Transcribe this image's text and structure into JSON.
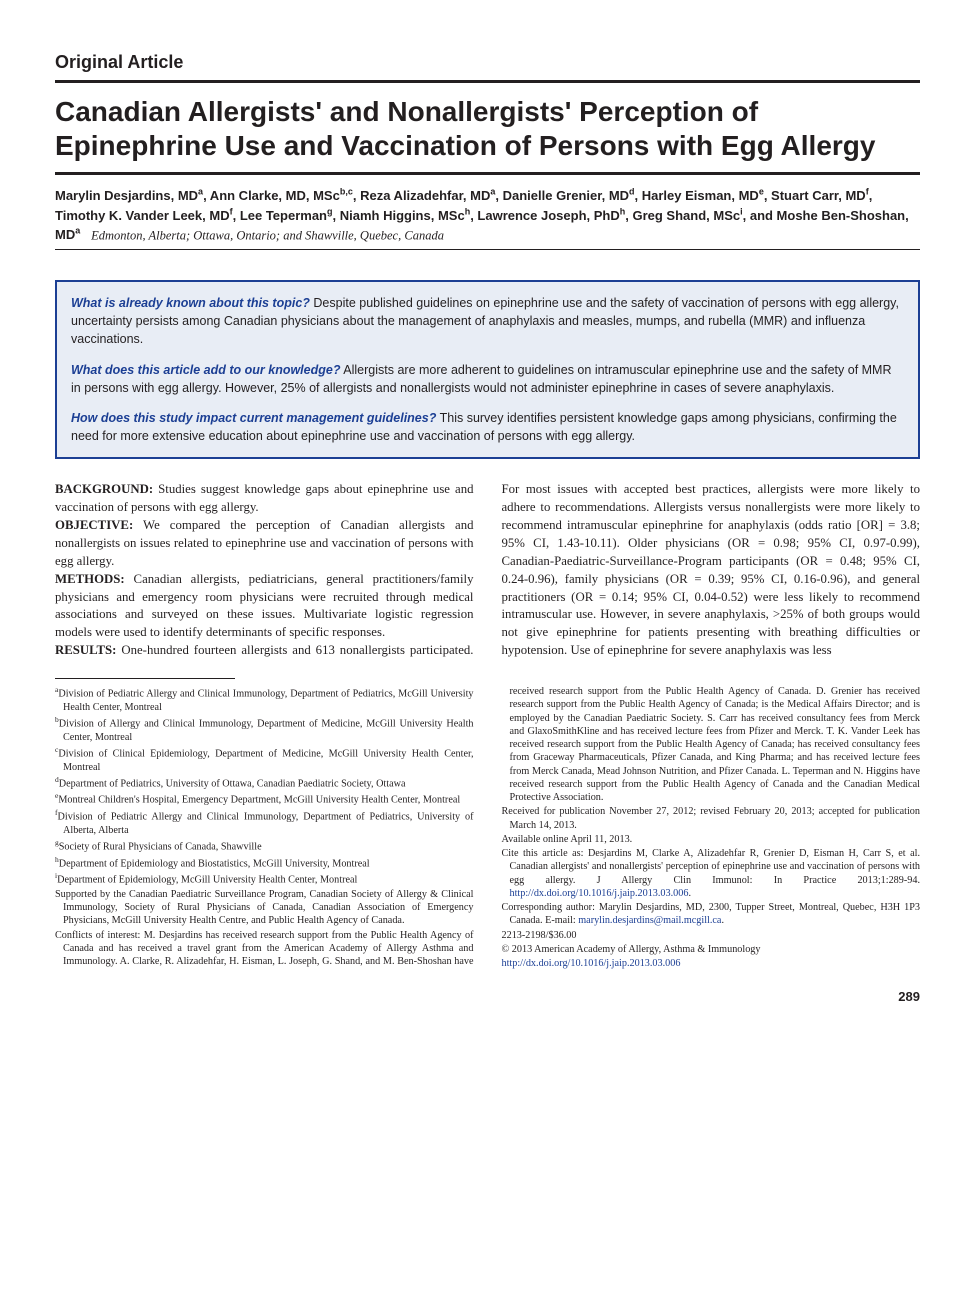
{
  "article_type": "Original Article",
  "title": "Canadian Allergists' and Nonallergists' Perception of Epinephrine Use and Vaccination of Persons with Egg Allergy",
  "authors_html": "Marylin Desjardins, MD<sup>a</sup>, Ann Clarke, MD, MSc<sup>b,c</sup>, Reza Alizadehfar, MD<sup>a</sup>, Danielle Grenier, MD<sup>d</sup>, Harley Eisman, MD<sup>e</sup>, Stuart Carr, MD<sup>f</sup>, Timothy K. Vander Leek, MD<sup>f</sup>, Lee Teperman<sup>g</sup>, Niamh Higgins, MSc<sup>h</sup>, Lawrence Joseph, PhD<sup>h</sup>, Greg Shand, MSc<sup>i</sup>, and Moshe Ben-Shoshan, MD<sup>a</sup>",
  "affil_locations": "Edmonton, Alberta; Ottawa, Ontario; and Shawville, Quebec, Canada",
  "highlights": [
    {
      "q": "What is already known about this topic?",
      "a": "Despite published guidelines on epinephrine use and the safety of vaccination of persons with egg allergy, uncertainty persists among Canadian physicians about the management of anaphylaxis and measles, mumps, and rubella (MMR) and influenza vaccinations."
    },
    {
      "q": "What does this article add to our knowledge?",
      "a": "Allergists are more adherent to guidelines on intramuscular epinephrine use and the safety of MMR in persons with egg allergy. However, 25% of allergists and nonallergists would not administer epinephrine in cases of severe anaphylaxis."
    },
    {
      "q": "How does this study impact current management guidelines?",
      "a": "This survey identifies persistent knowledge gaps among physicians, confirming the need for more extensive education about epinephrine use and vaccination of persons with egg allergy."
    }
  ],
  "abstract": {
    "background_label": "BACKGROUND:",
    "background": "Studies suggest knowledge gaps about epinephrine use and vaccination of persons with egg allergy.",
    "objective_label": "OBJECTIVE:",
    "objective": "We compared the perception of Canadian allergists and nonallergists on issues related to epinephrine use and vaccination of persons with egg allergy.",
    "methods_label": "METHODS:",
    "methods": "Canadian allergists, pediatricians, general practitioners/family physicians and emergency room physicians were recruited through medical associations and surveyed on these issues. Multivariate logistic regression models were used to identify determinants of specific responses.",
    "results_label": "RESULTS:",
    "results": "One-hundred fourteen allergists and 613 nonallergists participated. For most issues with accepted best practices, allergists were more likely to adhere to recommendations. Allergists versus nonallergists were more likely to recommend intramuscular epinephrine for anaphylaxis (odds ratio [OR] = 3.8; 95% CI, 1.43-10.11). Older physicians (OR = 0.98; 95% CI, 0.97-0.99), Canadian-Paediatric-Surveillance-Program participants (OR = 0.48; 95% CI, 0.24-0.96), family physicians (OR = 0.39; 95% CI, 0.16-0.96), and general practitioners (OR = 0.14; 95% CI, 0.04-0.52) were less likely to recommend intramuscular use. However, in severe anaphylaxis, >25% of both groups would not give epinephrine for patients presenting with breathing difficulties or hypotension. Use of epinephrine for severe anaphylaxis was less"
  },
  "footnotes": {
    "affiliations": [
      {
        "sup": "a",
        "text": "Division of Pediatric Allergy and Clinical Immunology, Department of Pediatrics, McGill University Health Center, Montreal"
      },
      {
        "sup": "b",
        "text": "Division of Allergy and Clinical Immunology, Department of Medicine, McGill University Health Center, Montreal"
      },
      {
        "sup": "c",
        "text": "Division of Clinical Epidemiology, Department of Medicine, McGill University Health Center, Montreal"
      },
      {
        "sup": "d",
        "text": "Department of Pediatrics, University of Ottawa, Canadian Paediatric Society, Ottawa"
      },
      {
        "sup": "e",
        "text": "Montreal Children's Hospital, Emergency Department, McGill University Health Center, Montreal"
      },
      {
        "sup": "f",
        "text": "Division of Pediatric Allergy and Clinical Immunology, Department of Pediatrics, University of Alberta, Alberta"
      },
      {
        "sup": "g",
        "text": "Society of Rural Physicians of Canada, Shawville"
      },
      {
        "sup": "h",
        "text": "Department of Epidemiology and Biostatistics, McGill University, Montreal"
      },
      {
        "sup": "i",
        "text": "Department of Epidemiology, McGill University Health Center, Montreal"
      }
    ],
    "support": "Supported by the Canadian Paediatric Surveillance Program, Canadian Society of Allergy & Clinical Immunology, Society of Rural Physicians of Canada, Canadian Association of Emergency Physicians, McGill University Health Centre, and Public Health Agency of Canada.",
    "conflicts": "Conflicts of interest: M. Desjardins has received research support from the Public Health Agency of Canada and has received a travel grant from the American Academy of Allergy Asthma and Immunology. A. Clarke, R. Alizadehfar, H. Eisman, L. Joseph, G. Shand, and M. Ben-Shoshan have received research support from the Public Health Agency of Canada. D. Grenier has received research support from the Public Health Agency of Canada; is the Medical Affairs Director; and is employed by the Canadian Paediatric Society. S. Carr has received consultancy fees from Merck and GlaxoSmithKline and has received lecture fees from Pfizer and Merck. T. K. Vander Leek has received research support from the Public Health Agency of Canada; has received consultancy fees from Graceway Pharmaceuticals, Pfizer Canada, and King Pharma; and has received lecture fees from Merck Canada, Mead Johnson Nutrition, and Pfizer Canada. L. Teperman and N. Higgins have received research support from the Public Health Agency of Canada and the Canadian Medical Protective Association.",
    "received": "Received for publication November 27, 2012; revised February 20, 2013; accepted for publication March 14, 2013.",
    "online": "Available online April 11, 2013.",
    "cite": "Cite this article as: Desjardins M, Clarke A, Alizadehfar R, Grenier D, Eisman H, Carr S, et al. Canadian allergists' and nonallergists' perception of epinephrine use and vaccination of persons with egg allergy. J Allergy Clin Immunol: In Practice 2013;1:289-94. ",
    "cite_link": "http://dx.doi.org/10.1016/j.jaip.2013.03.006",
    "corresponding": "Corresponding author: Marylin Desjardins, MD, 2300, Tupper Street, Montreal, Quebec, H3H 1P3 Canada. E-mail: ",
    "email": "marylin.desjardins@mail.mcgill.ca",
    "issn": "2213-2198/$36.00",
    "copyright": "© 2013 American Academy of Allergy, Asthma & Immunology",
    "doi_link": "http://dx.doi.org/10.1016/j.jaip.2013.03.006"
  },
  "page_number": "289",
  "colors": {
    "text": "#231f20",
    "box_border": "#1c3f94",
    "box_bg": "#e8edf5",
    "link": "#1c3f94"
  }
}
